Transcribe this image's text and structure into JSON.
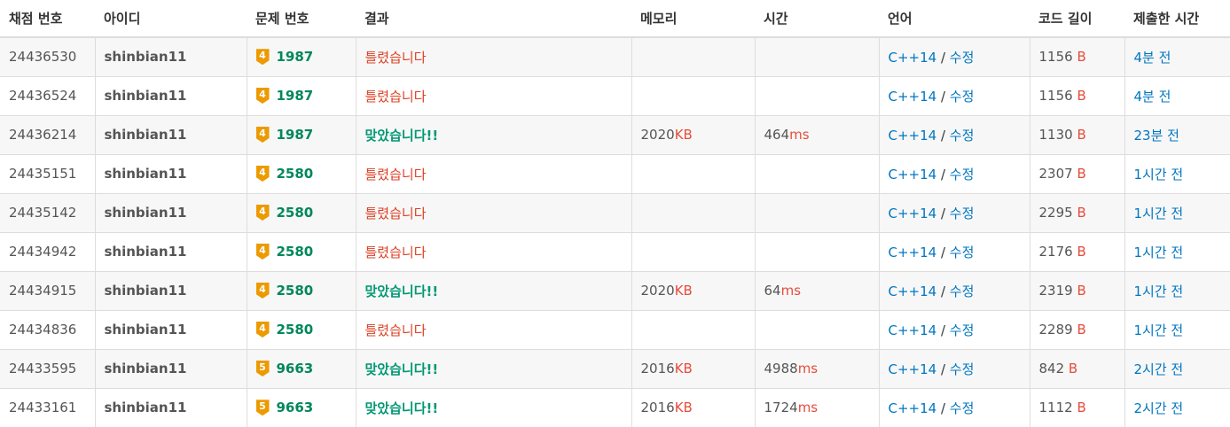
{
  "headers": [
    "채점 번호",
    "아이디",
    "문제 번호",
    "결과",
    "메모리",
    "시간",
    "언어",
    "코드 길이",
    "제출한 시간"
  ],
  "colors": {
    "accepted": "#009874",
    "wrong": "#dd4124",
    "link": "#0076c0",
    "unit": "#e74c3c",
    "tier": "#ec9a00"
  },
  "icons": {
    "tier": "gold-tier-badge"
  },
  "units": {
    "memory": "KB",
    "time": "ms",
    "code": "B"
  },
  "edit_label": "수정",
  "rows": [
    {
      "id": "24436530",
      "user": "shinbian11",
      "tier": "4",
      "problem": "1987",
      "result": "틀렸습니다",
      "status": "wrong",
      "memory": "",
      "time": "",
      "lang": "C++14",
      "code": "1156",
      "submitted": "4분 전"
    },
    {
      "id": "24436524",
      "user": "shinbian11",
      "tier": "4",
      "problem": "1987",
      "result": "틀렸습니다",
      "status": "wrong",
      "memory": "",
      "time": "",
      "lang": "C++14",
      "code": "1156",
      "submitted": "4분 전"
    },
    {
      "id": "24436214",
      "user": "shinbian11",
      "tier": "4",
      "problem": "1987",
      "result": "맞았습니다!!",
      "status": "ac",
      "memory": "2020",
      "time": "464",
      "lang": "C++14",
      "code": "1130",
      "submitted": "23분 전"
    },
    {
      "id": "24435151",
      "user": "shinbian11",
      "tier": "4",
      "problem": "2580",
      "result": "틀렸습니다",
      "status": "wrong",
      "memory": "",
      "time": "",
      "lang": "C++14",
      "code": "2307",
      "submitted": "1시간 전"
    },
    {
      "id": "24435142",
      "user": "shinbian11",
      "tier": "4",
      "problem": "2580",
      "result": "틀렸습니다",
      "status": "wrong",
      "memory": "",
      "time": "",
      "lang": "C++14",
      "code": "2295",
      "submitted": "1시간 전"
    },
    {
      "id": "24434942",
      "user": "shinbian11",
      "tier": "4",
      "problem": "2580",
      "result": "틀렸습니다",
      "status": "wrong",
      "memory": "",
      "time": "",
      "lang": "C++14",
      "code": "2176",
      "submitted": "1시간 전"
    },
    {
      "id": "24434915",
      "user": "shinbian11",
      "tier": "4",
      "problem": "2580",
      "result": "맞았습니다!!",
      "status": "ac",
      "memory": "2020",
      "time": "64",
      "lang": "C++14",
      "code": "2319",
      "submitted": "1시간 전"
    },
    {
      "id": "24434836",
      "user": "shinbian11",
      "tier": "4",
      "problem": "2580",
      "result": "틀렸습니다",
      "status": "wrong",
      "memory": "",
      "time": "",
      "lang": "C++14",
      "code": "2289",
      "submitted": "1시간 전"
    },
    {
      "id": "24433595",
      "user": "shinbian11",
      "tier": "5",
      "problem": "9663",
      "result": "맞았습니다!!",
      "status": "ac",
      "memory": "2016",
      "time": "4988",
      "lang": "C++14",
      "code": "842",
      "submitted": "2시간 전"
    },
    {
      "id": "24433161",
      "user": "shinbian11",
      "tier": "5",
      "problem": "9663",
      "result": "맞았습니다!!",
      "status": "ac",
      "memory": "2016",
      "time": "1724",
      "lang": "C++14",
      "code": "1112",
      "submitted": "2시간 전"
    }
  ]
}
